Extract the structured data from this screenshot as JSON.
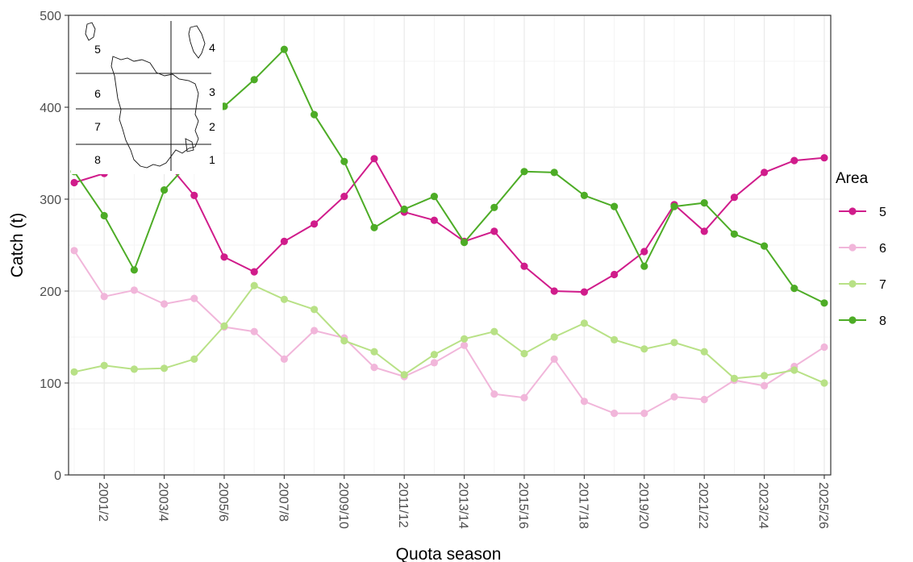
{
  "chart_data": {
    "type": "line",
    "xlabel": "Quota season",
    "ylabel": "Catch (t)",
    "ylim": [
      0,
      500
    ],
    "yticks": [
      0,
      100,
      200,
      300,
      400,
      500
    ],
    "grid": true,
    "legend": {
      "title": "Area",
      "position": "right"
    },
    "x": [
      "2000/1",
      "2001/2",
      "2002/3",
      "2003/4",
      "2004/5",
      "2005/6",
      "2006/7",
      "2007/8",
      "2008/9",
      "2009/10",
      "2010/11",
      "2011/12",
      "2012/13",
      "2013/14",
      "2014/15",
      "2015/16",
      "2016/17",
      "2017/18",
      "2018/19",
      "2019/20",
      "2020/21",
      "2021/22",
      "2022/23",
      "2023/24",
      "2024/25",
      "2025/26"
    ],
    "xtick_labels": [
      "2001/2",
      "2003/4",
      "2005/6",
      "2007/8",
      "2009/10",
      "2011/12",
      "2013/14",
      "2015/16",
      "2017/18",
      "2019/20",
      "2021/22",
      "2023/24",
      "2025/26"
    ],
    "series": [
      {
        "name": "5",
        "color": "#d01c8b",
        "values": [
          318,
          328,
          332,
          343,
          304,
          237,
          221,
          254,
          273,
          303,
          344,
          286,
          277,
          254,
          265,
          227,
          200,
          199,
          218,
          243,
          294,
          265,
          302,
          329,
          342,
          345
        ]
      },
      {
        "name": "6",
        "color": "#f1b6da",
        "values": [
          244,
          194,
          201,
          186,
          192,
          161,
          156,
          126,
          157,
          149,
          117,
          107,
          122,
          141,
          88,
          84,
          126,
          80,
          67,
          67,
          85,
          82,
          103,
          97,
          118,
          139
        ]
      },
      {
        "name": "7",
        "color": "#b8e186",
        "values": [
          112,
          119,
          115,
          116,
          126,
          162,
          206,
          191,
          180,
          146,
          134,
          109,
          131,
          148,
          156,
          132,
          150,
          165,
          147,
          137,
          144,
          134,
          105,
          108,
          114,
          100
        ]
      },
      {
        "name": "8",
        "color": "#4dac26",
        "values": [
          330,
          282,
          223,
          310,
          346,
          401,
          430,
          463,
          392,
          341,
          269,
          289,
          303,
          253,
          291,
          330,
          329,
          304,
          292,
          227,
          292,
          296,
          262,
          249,
          203,
          187
        ]
      }
    ],
    "inset_map": {
      "labels_left": [
        "5",
        "6",
        "7",
        "8"
      ],
      "labels_right": [
        "4",
        "3",
        "2",
        "1"
      ],
      "label_color": "#b22222"
    }
  }
}
